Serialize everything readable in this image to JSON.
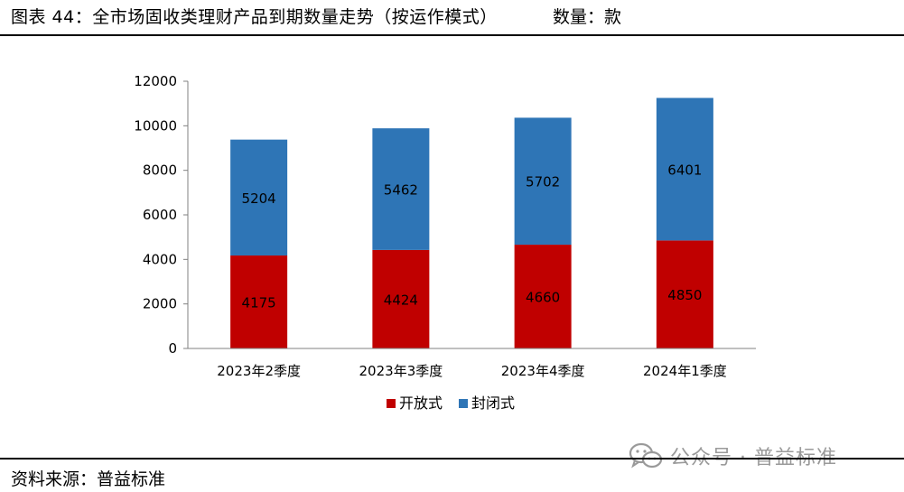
{
  "header": {
    "title": "图表 44：全市场固收类理财产品到期数量走势（按运作模式）",
    "unit": "数量：款"
  },
  "footer": {
    "source": "资料来源：普益标准"
  },
  "watermark": {
    "text": "公众号 · 普益标准",
    "icon": "wechat-icon"
  },
  "colors": {
    "open": "#C00000",
    "closed": "#2E75B6"
  },
  "chart_data": {
    "type": "bar",
    "stacked": true,
    "categories": [
      "2023年2季度",
      "2023年3季度",
      "2023年4季度",
      "2024年1季度"
    ],
    "series": [
      {
        "name": "开放式",
        "values": [
          4175,
          4424,
          4660,
          4850
        ],
        "color": "#C00000"
      },
      {
        "name": "封闭式",
        "values": [
          5204,
          5462,
          5702,
          6401
        ],
        "color": "#2E75B6"
      }
    ],
    "ylim": [
      0,
      12000
    ],
    "yticks": [
      0,
      2000,
      4000,
      6000,
      8000,
      10000,
      12000
    ],
    "grid": false,
    "legend": "bottom-center",
    "title": "",
    "xlabel": "",
    "ylabel": ""
  }
}
